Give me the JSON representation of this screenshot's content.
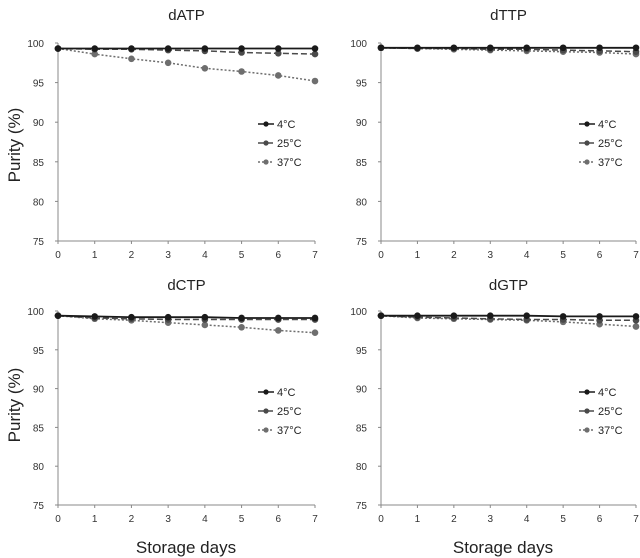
{
  "figure": {
    "ylabel": "Purity (%)",
    "xlabel": "Storage days"
  },
  "chart_data": [
    {
      "type": "line",
      "title": "dATP",
      "x": [
        0,
        1,
        2,
        3,
        4,
        5,
        6,
        7
      ],
      "ylim": [
        75,
        100
      ],
      "yticks": [
        75,
        80,
        85,
        90,
        95,
        100
      ],
      "grid": false,
      "legend": "right",
      "series": [
        {
          "name": "4°C",
          "style": "solid",
          "color": "#1a1a1a",
          "values": [
            99.3,
            99.3,
            99.3,
            99.3,
            99.3,
            99.3,
            99.3,
            99.3
          ]
        },
        {
          "name": "25°C",
          "style": "dashed",
          "color": "#4a4a4a",
          "values": [
            99.3,
            99.2,
            99.2,
            99.1,
            99.0,
            98.8,
            98.7,
            98.6
          ]
        },
        {
          "name": "37°C",
          "style": "dotted",
          "color": "#6e6e6e",
          "values": [
            99.3,
            98.6,
            98.0,
            97.5,
            96.8,
            96.4,
            95.9,
            95.2
          ]
        }
      ]
    },
    {
      "type": "line",
      "title": "dTTP",
      "x": [
        0,
        1,
        2,
        3,
        4,
        5,
        6,
        7
      ],
      "ylim": [
        75,
        100
      ],
      "yticks": [
        75,
        80,
        85,
        90,
        95,
        100
      ],
      "grid": false,
      "legend": "right",
      "series": [
        {
          "name": "4°C",
          "style": "solid",
          "color": "#1a1a1a",
          "values": [
            99.4,
            99.4,
            99.4,
            99.4,
            99.4,
            99.4,
            99.4,
            99.4
          ]
        },
        {
          "name": "25°C",
          "style": "dashed",
          "color": "#4a4a4a",
          "values": [
            99.4,
            99.3,
            99.3,
            99.2,
            99.2,
            99.1,
            99.0,
            98.9
          ]
        },
        {
          "name": "37°C",
          "style": "dotted",
          "color": "#6e6e6e",
          "values": [
            99.4,
            99.3,
            99.2,
            99.1,
            99.0,
            98.9,
            98.8,
            98.6
          ]
        }
      ]
    },
    {
      "type": "line",
      "title": "dCTP",
      "x": [
        0,
        1,
        2,
        3,
        4,
        5,
        6,
        7
      ],
      "ylim": [
        75,
        100
      ],
      "yticks": [
        75,
        80,
        85,
        90,
        95,
        100
      ],
      "grid": false,
      "legend": "right",
      "series": [
        {
          "name": "4°C",
          "style": "solid",
          "color": "#1a1a1a",
          "values": [
            99.4,
            99.3,
            99.2,
            99.2,
            99.2,
            99.1,
            99.1,
            99.1
          ]
        },
        {
          "name": "25°C",
          "style": "dashed",
          "color": "#4a4a4a",
          "values": [
            99.4,
            99.1,
            99.0,
            98.9,
            98.9,
            98.9,
            98.9,
            98.9
          ]
        },
        {
          "name": "37°C",
          "style": "dotted",
          "color": "#6e6e6e",
          "values": [
            99.4,
            99.0,
            98.8,
            98.5,
            98.2,
            97.9,
            97.5,
            97.2
          ]
        }
      ]
    },
    {
      "type": "line",
      "title": "dGTP",
      "x": [
        0,
        1,
        2,
        3,
        4,
        5,
        6,
        7
      ],
      "ylim": [
        75,
        100
      ],
      "yticks": [
        75,
        80,
        85,
        90,
        95,
        100
      ],
      "grid": false,
      "legend": "right",
      "series": [
        {
          "name": "4°C",
          "style": "solid",
          "color": "#1a1a1a",
          "values": [
            99.4,
            99.4,
            99.4,
            99.4,
            99.4,
            99.3,
            99.3,
            99.3
          ]
        },
        {
          "name": "25°C",
          "style": "dashed",
          "color": "#4a4a4a",
          "values": [
            99.4,
            99.2,
            99.1,
            99.0,
            98.9,
            98.9,
            98.8,
            98.8
          ]
        },
        {
          "name": "37°C",
          "style": "dotted",
          "color": "#6e6e6e",
          "values": [
            99.4,
            99.1,
            99.0,
            98.9,
            98.8,
            98.6,
            98.3,
            98.0
          ]
        }
      ]
    }
  ]
}
